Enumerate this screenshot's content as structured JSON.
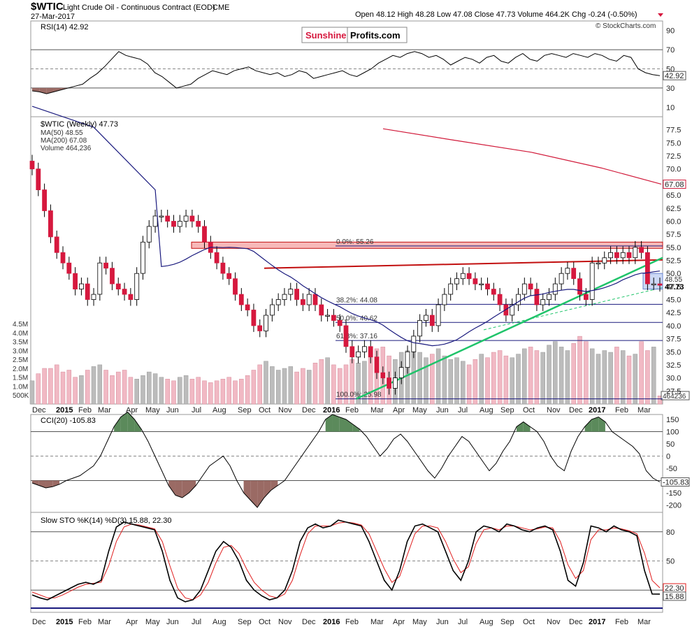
{
  "header": {
    "symbol": "$WTIC",
    "name": "Light Crude Oil - Continuous Contract (EOD)",
    "exchange": "CME",
    "date": "27-Mar-2017",
    "ohlc": "Open 48.12  High 48.28  Low 47.08  Close 47.73  Volume 464.2K  Chg -0.24 (-0.50%)",
    "copyright": "© StockCharts.com"
  },
  "logo": {
    "left": "Sunshine",
    "right": "Profits.com"
  },
  "chart_data": [
    {
      "type": "line",
      "panel": "rsi",
      "title": "RSI(14) 42.92",
      "last_label": "42.92",
      "ylim": [
        0,
        100
      ],
      "yticks": [
        "90",
        "70",
        "50",
        "30",
        "10"
      ],
      "reference_lines": [
        70,
        50,
        30
      ],
      "series": [
        {
          "values": [
            27,
            26,
            24,
            26,
            28,
            30,
            32,
            34,
            40,
            45,
            52,
            60,
            68,
            64,
            62,
            60,
            55,
            46,
            42,
            36,
            30,
            32,
            34,
            40,
            44,
            48,
            46,
            44,
            48,
            50,
            52,
            48,
            46,
            44,
            46,
            42,
            44,
            48,
            46,
            40,
            42,
            44,
            46,
            48,
            44,
            42,
            46,
            50,
            56,
            60,
            64,
            62,
            66,
            68,
            66,
            62,
            64,
            60,
            54,
            58,
            62,
            60,
            56,
            62,
            64,
            58,
            56,
            62,
            66,
            60,
            58,
            64,
            66,
            64,
            62,
            66,
            64,
            62,
            66,
            64,
            60,
            58,
            64,
            62,
            50,
            46,
            44,
            42.92
          ]
        }
      ]
    },
    {
      "type": "candlestick",
      "panel": "price",
      "title": "$WTIC (Weekly) 47.73",
      "legend": [
        "MA(50) 48.55",
        "MA(200) 67.08",
        "Volume 464,236"
      ],
      "ylim": [
        25,
        80
      ],
      "yticks": [
        "77.5",
        "75.0",
        "72.5",
        "70.0",
        "67.5",
        "65.0",
        "62.5",
        "60.0",
        "57.5",
        "55.0",
        "52.5",
        "50.0",
        "47.5",
        "45.0",
        "42.5",
        "40.0",
        "37.5",
        "35.0",
        "32.5",
        "30.0",
        "27.5"
      ],
      "last_price_label": "47.73",
      "ma50_label": "48.55",
      "ma200_label": "67.08",
      "fibonacci": [
        {
          "label": "0.0%: 55.26",
          "value": 55.26
        },
        {
          "label": "38.2%: 44.08",
          "value": 44.08
        },
        {
          "label": "50.0%: 40.62",
          "value": 40.62
        },
        {
          "label": "61.8%: 37.16",
          "value": 37.16
        },
        {
          "label": "100.0%: 25.98",
          "value": 25.98
        }
      ],
      "resistance_zone": [
        54.8,
        56.0
      ],
      "closes": [
        70,
        66,
        62,
        57,
        54,
        52,
        50,
        47,
        48,
        45,
        46,
        52,
        51,
        48,
        47,
        46,
        45,
        50,
        56,
        59,
        61,
        61,
        60,
        59,
        60,
        61,
        60,
        59,
        56,
        54,
        52,
        50,
        49,
        46,
        44,
        43,
        40,
        39,
        42,
        44,
        45,
        46,
        47,
        45,
        44,
        46,
        44,
        42,
        42,
        41,
        40,
        36,
        34,
        35,
        36,
        34,
        31,
        30,
        28,
        30,
        32,
        35,
        38,
        41,
        42,
        40,
        44,
        46,
        48,
        49,
        50,
        49,
        48,
        48,
        47,
        46,
        44,
        42,
        44,
        46,
        48,
        47,
        44,
        45,
        46,
        48,
        50,
        51,
        49,
        46,
        45,
        52,
        52,
        53,
        54,
        53,
        54,
        53,
        55,
        54,
        48,
        48,
        47.73
      ],
      "volume": {
        "yticks": [
          "4.5M",
          "4.0M",
          "3.5M",
          "3.0M",
          "2.5M",
          "2.0M",
          "1.5M",
          "1.0M",
          "500K"
        ],
        "last_label": "464236",
        "values_m": [
          1.3,
          1.7,
          2.0,
          2.0,
          2.2,
          1.8,
          1.9,
          1.5,
          1.6,
          1.9,
          2.1,
          2.2,
          1.9,
          1.6,
          1.8,
          1.9,
          1.5,
          1.4,
          1.6,
          1.8,
          1.7,
          1.5,
          1.4,
          1.3,
          1.5,
          1.6,
          1.4,
          1.5,
          1.3,
          1.2,
          1.3,
          1.4,
          1.5,
          1.3,
          1.4,
          1.6,
          1.9,
          2.2,
          2.4,
          2.1,
          1.9,
          2.0,
          2.1,
          1.8,
          2.0,
          1.9,
          2.3,
          2.5,
          2.6,
          2.2,
          2.0,
          2.2,
          2.5,
          2.3,
          2.4,
          2.7,
          3.1,
          3.2,
          2.7,
          2.5,
          2.9,
          3.0,
          3.2,
          2.9,
          2.6,
          2.8,
          3.1,
          2.7,
          2.5,
          2.6,
          2.4,
          2.2,
          2.5,
          2.8,
          2.6,
          2.9,
          3.0,
          2.7,
          2.6,
          2.8,
          3.1,
          3.2,
          3.0,
          2.9,
          3.3,
          3.5,
          3.2,
          3.0,
          3.4,
          3.8,
          3.5,
          3.1,
          2.8,
          3.0,
          2.9,
          3.2,
          3.0,
          2.7,
          2.8,
          3.5,
          3.0,
          3.2,
          0.46
        ]
      }
    },
    {
      "type": "line",
      "panel": "cci",
      "title": "CCI(20) -105.83",
      "last_label": "-105.83",
      "yticks": [
        "150",
        "100",
        "50",
        "0",
        "-50",
        "-100",
        "-150",
        "-200"
      ],
      "reference_lines": [
        100,
        0,
        -100
      ],
      "series": [
        {
          "values": [
            -110,
            -120,
            -130,
            -125,
            -115,
            -100,
            -90,
            -80,
            -60,
            -40,
            0,
            60,
            120,
            160,
            180,
            150,
            110,
            60,
            0,
            -60,
            -120,
            -160,
            -170,
            -150,
            -120,
            -80,
            -40,
            -20,
            0,
            -40,
            -100,
            -150,
            -180,
            -210,
            -170,
            -140,
            -120,
            -100,
            -60,
            -20,
            20,
            60,
            100,
            150,
            170,
            160,
            150,
            130,
            110,
            80,
            40,
            0,
            30,
            70,
            90,
            60,
            20,
            -20,
            -60,
            -90,
            -50,
            0,
            40,
            80,
            60,
            20,
            -20,
            -60,
            -30,
            20,
            60,
            120,
            140,
            120,
            100,
            60,
            0,
            -40,
            -60,
            20,
            80,
            120,
            150,
            160,
            140,
            100,
            80,
            60,
            40,
            10,
            -60,
            -90,
            -105.83
          ]
        }
      ]
    },
    {
      "type": "line",
      "panel": "stochastic",
      "title": "Slow STO %K(14) %D(3) 15.88, 22.30",
      "k_label": "15.88",
      "d_label": "22.30",
      "yticks": [
        "80",
        "50",
        "20"
      ],
      "reference_lines": [
        80,
        50,
        20
      ],
      "series": [
        {
          "name": "%K",
          "values": [
            15,
            12,
            10,
            14,
            18,
            22,
            26,
            28,
            26,
            30,
            60,
            85,
            90,
            88,
            86,
            84,
            82,
            60,
            30,
            12,
            8,
            10,
            20,
            40,
            60,
            70,
            64,
            50,
            30,
            20,
            14,
            10,
            12,
            20,
            40,
            70,
            84,
            88,
            84,
            86,
            92,
            90,
            88,
            86,
            70,
            50,
            30,
            20,
            40,
            70,
            86,
            88,
            84,
            80,
            60,
            40,
            30,
            50,
            80,
            86,
            84,
            80,
            88,
            86,
            82,
            80,
            84,
            86,
            82,
            60,
            30,
            24,
            48,
            86,
            84,
            80,
            86,
            82,
            80,
            76,
            40,
            16,
            15.88
          ]
        },
        {
          "name": "%D",
          "values": [
            18,
            15,
            12,
            12,
            15,
            19,
            23,
            26,
            27,
            28,
            45,
            70,
            85,
            88,
            87,
            85,
            83,
            70,
            45,
            22,
            12,
            10,
            15,
            28,
            48,
            64,
            66,
            58,
            42,
            28,
            20,
            14,
            12,
            16,
            30,
            56,
            78,
            86,
            86,
            86,
            89,
            90,
            89,
            87,
            78,
            60,
            42,
            28,
            34,
            56,
            78,
            86,
            86,
            84,
            70,
            52,
            38,
            44,
            68,
            82,
            84,
            82,
            86,
            86,
            84,
            82,
            83,
            85,
            84,
            70,
            46,
            32,
            40,
            72,
            82,
            82,
            84,
            83,
            81,
            78,
            58,
            30,
            22.3
          ]
        }
      ]
    }
  ],
  "xaxis": {
    "labels": [
      "Dec",
      "2015",
      "Feb",
      "Mar",
      "Apr",
      "May",
      "Jun",
      "Jul",
      "Aug",
      "Sep",
      "Oct",
      "Nov",
      "Dec",
      "2016",
      "Feb",
      "Mar",
      "Apr",
      "May",
      "Jun",
      "Jul",
      "Aug",
      "Sep",
      "Oct",
      "Nov",
      "Dec",
      "2017",
      "Feb",
      "Mar"
    ],
    "bold": [
      "2015",
      "2016",
      "2017"
    ]
  },
  "colors": {
    "up": "#ffffff",
    "down": "#d6183e",
    "ma50": "#1a1a7e",
    "ma200": "#d11a3a",
    "fib": "#1a1a7e",
    "green_line": "#1fc46a",
    "red_line": "#c21010",
    "rsi_fill": "#9a6a64",
    "cci_pos_fill": "#5b8a5b",
    "cci_neg_fill": "#9a6a64",
    "stoch_k": "#000000",
    "stoch_d": "#e01e1e"
  }
}
